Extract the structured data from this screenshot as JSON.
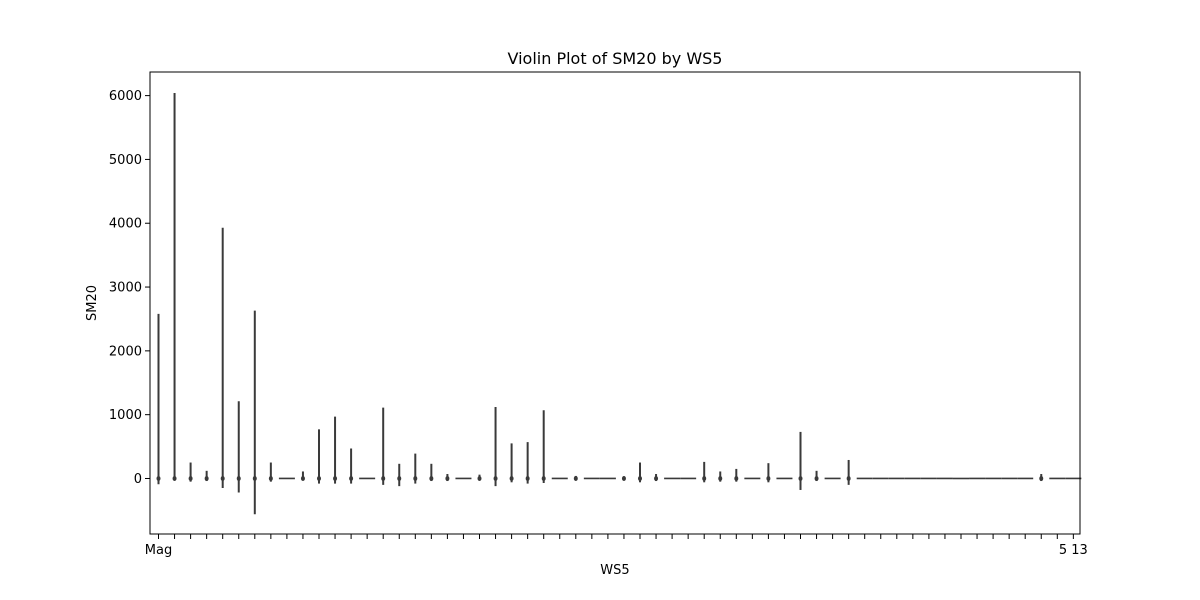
{
  "chart_data": {
    "type": "violin",
    "title": "Violin Plot of SM20 by WS5",
    "xlabel": "WS5",
    "ylabel": "SM20",
    "ylim": [
      -870,
      6370
    ],
    "yticks": [
      0,
      1000,
      2000,
      3000,
      4000,
      5000,
      6000
    ],
    "yticklabels": [
      "0",
      "1000",
      "2000",
      "3000",
      "4000",
      "5000",
      "6000"
    ],
    "grid": false,
    "n_categories": 58,
    "color": "#3a3a3a",
    "violins": [
      {
        "min": -90,
        "max": 2580
      },
      {
        "min": -30,
        "max": 6040
      },
      {
        "min": -50,
        "max": 250
      },
      {
        "min": -40,
        "max": 120
      },
      {
        "min": -150,
        "max": 3930
      },
      {
        "min": -220,
        "max": 1210
      },
      {
        "min": -560,
        "max": 2630
      },
      {
        "min": -50,
        "max": 250
      },
      {
        "min": 0,
        "max": 0
      },
      {
        "min": -20,
        "max": 110
      },
      {
        "min": -80,
        "max": 770
      },
      {
        "min": -80,
        "max": 970
      },
      {
        "min": -80,
        "max": 470
      },
      {
        "min": 0,
        "max": 0
      },
      {
        "min": -100,
        "max": 1110
      },
      {
        "min": -120,
        "max": 230
      },
      {
        "min": -80,
        "max": 390
      },
      {
        "min": -40,
        "max": 230
      },
      {
        "min": -40,
        "max": 70
      },
      {
        "min": 0,
        "max": 0
      },
      {
        "min": -20,
        "max": 60
      },
      {
        "min": -120,
        "max": 1120
      },
      {
        "min": -60,
        "max": 550
      },
      {
        "min": -80,
        "max": 570
      },
      {
        "min": -70,
        "max": 1070
      },
      {
        "min": 0,
        "max": 0
      },
      {
        "min": -20,
        "max": 40
      },
      {
        "min": 0,
        "max": 0
      },
      {
        "min": 0,
        "max": 0
      },
      {
        "min": -20,
        "max": 30
      },
      {
        "min": -60,
        "max": 250
      },
      {
        "min": -40,
        "max": 70
      },
      {
        "min": 0,
        "max": 0
      },
      {
        "min": 0,
        "max": 0
      },
      {
        "min": -60,
        "max": 260
      },
      {
        "min": -50,
        "max": 110
      },
      {
        "min": -50,
        "max": 150
      },
      {
        "min": 0,
        "max": 0
      },
      {
        "min": -60,
        "max": 240
      },
      {
        "min": 0,
        "max": 0
      },
      {
        "min": -180,
        "max": 730
      },
      {
        "min": -40,
        "max": 120
      },
      {
        "min": 0,
        "max": 0
      },
      {
        "min": -100,
        "max": 290
      },
      {
        "min": 0,
        "max": 0
      },
      {
        "min": 0,
        "max": 0
      },
      {
        "min": 0,
        "max": 0
      },
      {
        "min": 0,
        "max": 0
      },
      {
        "min": 0,
        "max": 0
      },
      {
        "min": 0,
        "max": 0
      },
      {
        "min": 0,
        "max": 0
      },
      {
        "min": 0,
        "max": 0
      },
      {
        "min": 0,
        "max": 0
      },
      {
        "min": 0,
        "max": 0
      },
      {
        "min": 0,
        "max": 0
      },
      {
        "min": -40,
        "max": 70
      },
      {
        "min": 0,
        "max": 0
      },
      {
        "min": 0,
        "max": 0
      }
    ],
    "xticklabels_visible": [
      {
        "index": 0,
        "text": "Mag"
      },
      {
        "index": 57,
        "text": "5 13"
      }
    ]
  }
}
